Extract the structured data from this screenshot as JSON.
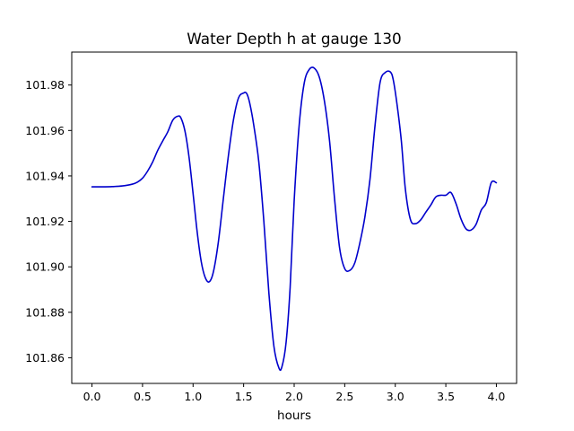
{
  "chart_data": {
    "type": "line",
    "title": "Water Depth h at gauge 130",
    "xlabel": "hours",
    "ylabel": "",
    "xlim": [
      -0.2,
      4.2
    ],
    "ylim": [
      101.8487,
      101.9945
    ],
    "xticks": [
      0.0,
      0.5,
      1.0,
      1.5,
      2.0,
      2.5,
      3.0,
      3.5,
      4.0
    ],
    "xtick_labels": [
      "0.0",
      "0.5",
      "1.0",
      "1.5",
      "2.0",
      "2.5",
      "3.0",
      "3.5",
      "4.0"
    ],
    "yticks": [
      101.86,
      101.88,
      101.9,
      101.92,
      101.94,
      101.96,
      101.98
    ],
    "ytick_labels": [
      "101.86",
      "101.88",
      "101.90",
      "101.92",
      "101.94",
      "101.96",
      "101.98"
    ],
    "grid": false,
    "series": [
      {
        "color": "#0000cc",
        "x": [
          0.0,
          0.1,
          0.2,
          0.3,
          0.4,
          0.45,
          0.5,
          0.55,
          0.6,
          0.65,
          0.7,
          0.75,
          0.8,
          0.85,
          0.88,
          0.92,
          0.96,
          1.0,
          1.04,
          1.08,
          1.12,
          1.16,
          1.2,
          1.25,
          1.3,
          1.35,
          1.4,
          1.45,
          1.5,
          1.53,
          1.56,
          1.6,
          1.65,
          1.7,
          1.75,
          1.8,
          1.85,
          1.88,
          1.92,
          1.96,
          2.0,
          2.05,
          2.1,
          2.15,
          2.2,
          2.25,
          2.3,
          2.35,
          2.4,
          2.45,
          2.5,
          2.55,
          2.6,
          2.65,
          2.7,
          2.75,
          2.8,
          2.85,
          2.9,
          2.95,
          2.98,
          3.02,
          3.06,
          3.1,
          3.15,
          3.2,
          3.25,
          3.3,
          3.35,
          3.4,
          3.45,
          3.5,
          3.55,
          3.6,
          3.65,
          3.7,
          3.75,
          3.8,
          3.85,
          3.9,
          3.95,
          4.0
        ],
        "y": [
          101.9352,
          101.9352,
          101.9353,
          101.9356,
          101.9364,
          101.9373,
          101.939,
          101.9421,
          101.9461,
          101.9512,
          101.9554,
          101.9594,
          101.9646,
          101.9663,
          101.9655,
          101.9597,
          101.9483,
          101.9323,
          101.9156,
          101.9025,
          101.8953,
          101.8934,
          101.8976,
          101.9109,
          101.9302,
          101.9491,
          101.9648,
          101.9744,
          101.9765,
          101.9763,
          101.9721,
          101.9624,
          101.9462,
          101.9201,
          101.8884,
          101.8649,
          101.8554,
          101.8562,
          101.8667,
          101.8908,
          101.9291,
          101.9626,
          101.981,
          101.9869,
          101.9874,
          101.9833,
          101.9727,
          101.9554,
          101.9297,
          101.9081,
          101.8992,
          101.8984,
          101.9018,
          101.9106,
          101.9221,
          101.9386,
          101.9623,
          101.9812,
          101.9855,
          101.9858,
          101.9823,
          101.9706,
          101.9554,
          101.9341,
          101.9208,
          101.919,
          101.9206,
          101.9239,
          101.9271,
          101.9307,
          101.9315,
          101.9315,
          101.9327,
          101.9279,
          101.9211,
          101.9167,
          101.9162,
          101.9188,
          101.9249,
          101.9282,
          101.9371,
          101.937
        ]
      }
    ]
  }
}
